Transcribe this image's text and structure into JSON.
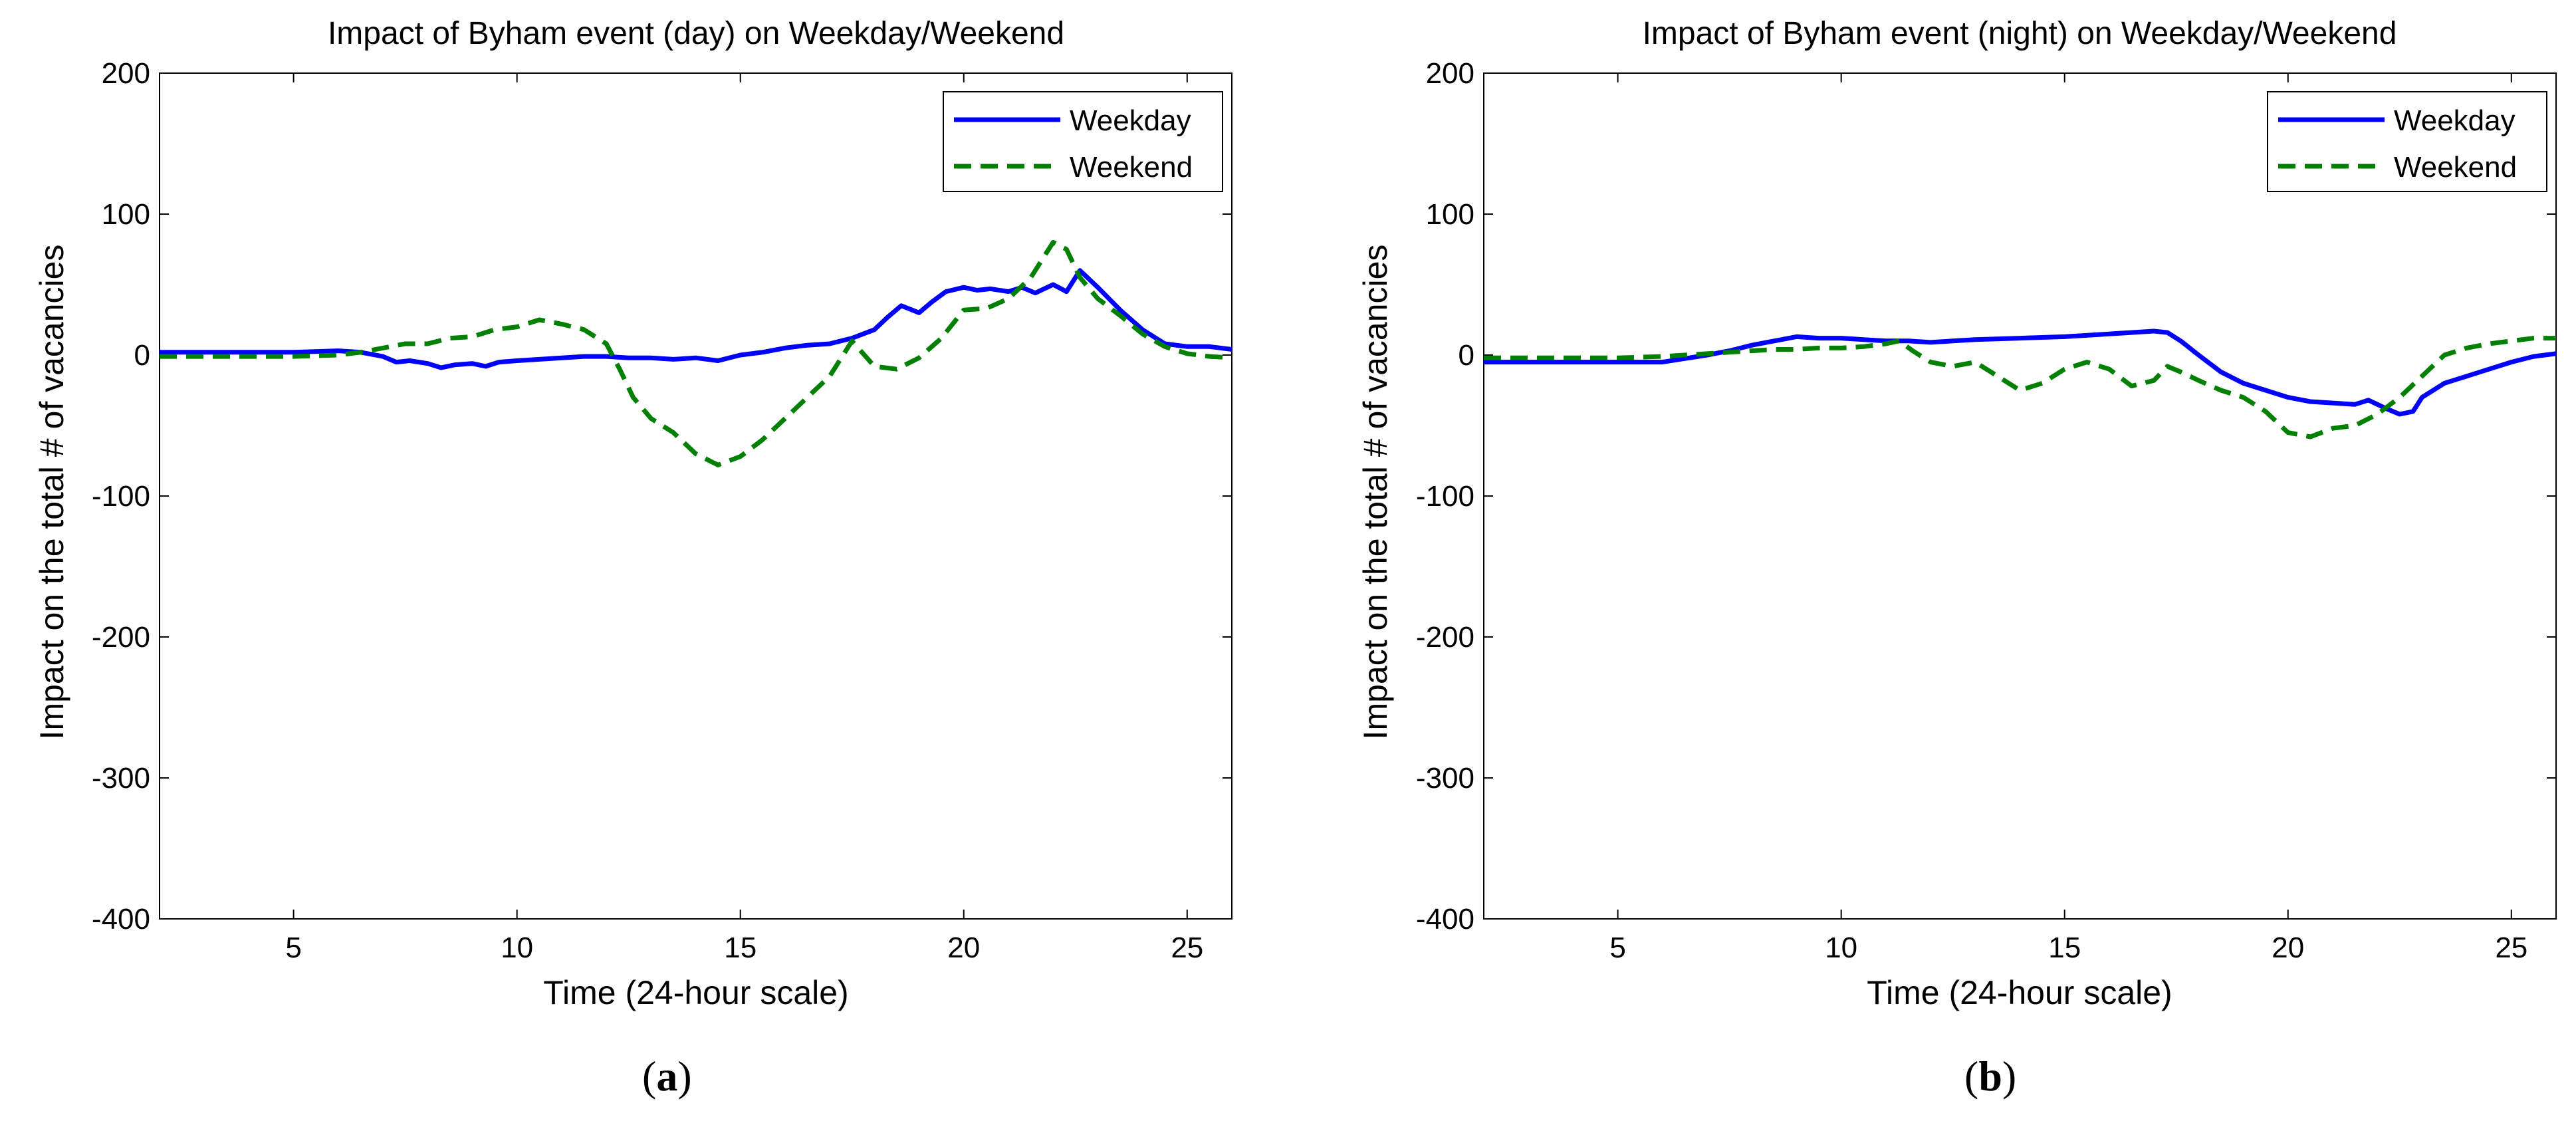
{
  "figure": {
    "panels": [
      "(a)",
      "(b)"
    ]
  },
  "chart_data": [
    {
      "type": "line",
      "title": "Impact of Byham event (day) on Weekday/Weekend",
      "xlabel": "Time (24-hour scale)",
      "ylabel": "Impact on the total # of vacancies",
      "xlim": [
        2,
        26
      ],
      "ylim": [
        -400,
        200
      ],
      "xticks": [
        5,
        10,
        15,
        20,
        25
      ],
      "yticks": [
        -400,
        -300,
        -200,
        -100,
        0,
        100,
        200
      ],
      "legend_position": "top-right",
      "caption_label": "a",
      "series": [
        {
          "name": "Weekday",
          "color": "#0000ff",
          "style": "solid",
          "x": [
            2,
            3,
            4,
            5,
            6,
            6.5,
            7,
            7.3,
            7.6,
            8,
            8.3,
            8.6,
            9,
            9.3,
            9.6,
            10,
            10.5,
            11,
            11.5,
            12,
            12.5,
            13,
            13.5,
            14,
            14.5,
            15,
            15.5,
            16,
            16.5,
            17,
            17.5,
            18,
            18.3,
            18.6,
            19,
            19.3,
            19.6,
            20,
            20.3,
            20.6,
            21,
            21.3,
            21.6,
            22,
            22.3,
            22.6,
            23,
            23.5,
            24,
            24.5,
            25,
            25.5,
            26
          ],
          "y": [
            2,
            2,
            2,
            2,
            3,
            2,
            -1,
            -5,
            -4,
            -6,
            -9,
            -7,
            -6,
            -8,
            -5,
            -4,
            -3,
            -2,
            -1,
            -1,
            -2,
            -2,
            -3,
            -2,
            -4,
            0,
            2,
            5,
            7,
            8,
            12,
            18,
            27,
            35,
            30,
            38,
            45,
            48,
            46,
            47,
            45,
            48,
            44,
            50,
            45,
            60,
            48,
            32,
            18,
            8,
            6,
            6,
            4
          ]
        },
        {
          "name": "Weekend",
          "color": "#008000",
          "style": "dashed",
          "x": [
            2,
            3,
            4,
            5,
            6,
            6.5,
            7,
            7.5,
            8,
            8.5,
            9,
            9.5,
            10,
            10.5,
            11,
            11.5,
            12,
            12.3,
            12.6,
            13,
            13.5,
            14,
            14.5,
            15,
            15.5,
            16,
            16.5,
            17,
            17.5,
            18,
            18.5,
            19,
            19.5,
            20,
            20.5,
            21,
            21.5,
            22,
            22.3,
            22.6,
            23,
            23.5,
            24,
            24.5,
            25,
            25.5,
            26
          ],
          "y": [
            -1,
            -1,
            -1,
            -1,
            0,
            2,
            5,
            8,
            8,
            12,
            13,
            18,
            20,
            25,
            22,
            18,
            8,
            -10,
            -30,
            -45,
            -55,
            -70,
            -78,
            -72,
            -60,
            -45,
            -30,
            -15,
            10,
            -8,
            -10,
            -2,
            12,
            32,
            33,
            40,
            55,
            80,
            75,
            55,
            40,
            28,
            15,
            6,
            1,
            -1,
            -2
          ]
        }
      ]
    },
    {
      "type": "line",
      "title": "Impact of Byham event (night) on Weekday/Weekend",
      "xlabel": "Time (24-hour scale)",
      "ylabel": "Impact on the total # of vacancies",
      "xlim": [
        2,
        26
      ],
      "ylim": [
        -400,
        200
      ],
      "xticks": [
        5,
        10,
        15,
        20,
        25
      ],
      "yticks": [
        -400,
        -300,
        -200,
        -100,
        0,
        100,
        200
      ],
      "legend_position": "top-right",
      "caption_label": "b",
      "series": [
        {
          "name": "Weekday",
          "color": "#0000ff",
          "style": "solid",
          "x": [
            2,
            3,
            4,
            5,
            6,
            7,
            7.5,
            8,
            8.5,
            9,
            9.5,
            10,
            10.5,
            11,
            11.5,
            12,
            12.5,
            13,
            14,
            15,
            16,
            16.5,
            17,
            17.3,
            17.6,
            18,
            18.5,
            19,
            19.5,
            20,
            20.5,
            21,
            21.5,
            21.8,
            22,
            22.2,
            22.5,
            22.8,
            23,
            23.5,
            24,
            24.5,
            25,
            25.5,
            26
          ],
          "y": [
            -5,
            -5,
            -5,
            -5,
            -5,
            0,
            3,
            7,
            10,
            13,
            12,
            12,
            11,
            10,
            10,
            9,
            10,
            11,
            12,
            13,
            15,
            16,
            17,
            16,
            10,
            0,
            -12,
            -20,
            -25,
            -30,
            -33,
            -34,
            -35,
            -32,
            -35,
            -38,
            -42,
            -40,
            -30,
            -20,
            -15,
            -10,
            -5,
            -1,
            1
          ]
        },
        {
          "name": "Weekend",
          "color": "#008000",
          "style": "dashed",
          "x": [
            2,
            3,
            4,
            5,
            6,
            6.5,
            7,
            7.5,
            8,
            8.5,
            9,
            9.5,
            10,
            10.5,
            11,
            11.3,
            11.6,
            12,
            12.5,
            13,
            13.5,
            14,
            14.5,
            15,
            15.5,
            16,
            16.5,
            17,
            17.3,
            17.6,
            18,
            18.5,
            19,
            19.5,
            20,
            20.5,
            21,
            21.5,
            22,
            22.5,
            23,
            23.5,
            24,
            24.5,
            25,
            25.5,
            26
          ],
          "y": [
            -2,
            -2,
            -2,
            -2,
            -1,
            0,
            1,
            2,
            3,
            4,
            4,
            5,
            5,
            6,
            8,
            10,
            3,
            -5,
            -8,
            -5,
            -15,
            -25,
            -20,
            -10,
            -5,
            -10,
            -22,
            -18,
            -8,
            -12,
            -18,
            -25,
            -30,
            -40,
            -55,
            -58,
            -52,
            -50,
            -42,
            -30,
            -15,
            0,
            5,
            8,
            10,
            12,
            12
          ]
        }
      ]
    }
  ]
}
